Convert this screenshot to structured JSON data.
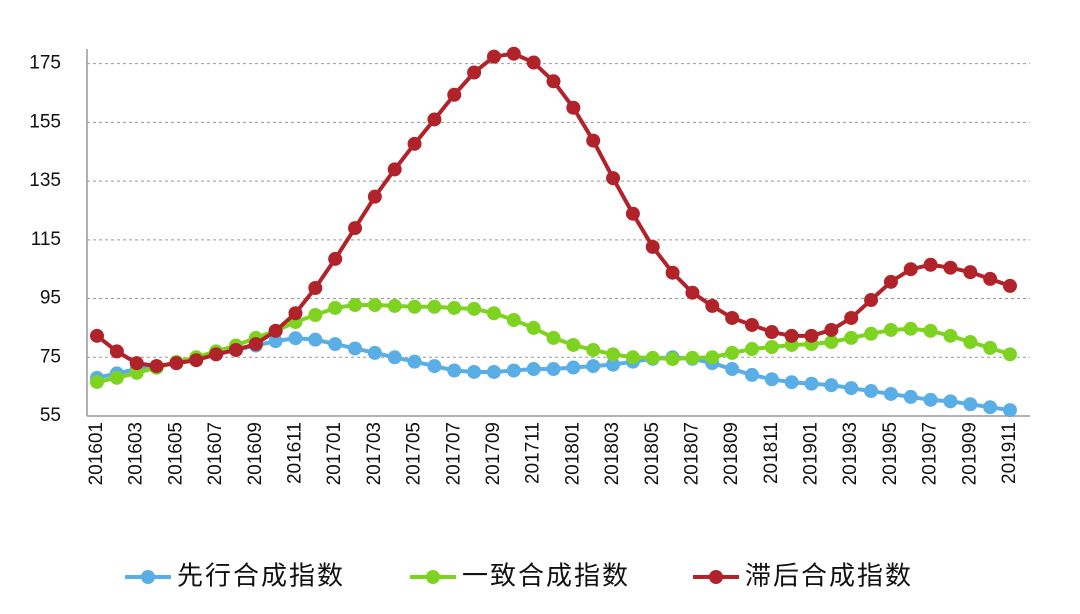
{
  "chart_data": {
    "type": "line",
    "categories": [
      "201601",
      null,
      "201603",
      null,
      "201605",
      null,
      "201607",
      null,
      "201609",
      null,
      "201611",
      null,
      "201701",
      null,
      "201703",
      null,
      "201705",
      null,
      "201707",
      null,
      "201709",
      null,
      "201711",
      null,
      "201801",
      null,
      "201803",
      null,
      "201805",
      null,
      "201807",
      null,
      "201809",
      null,
      "201811",
      null,
      "201901",
      null,
      "201903",
      null,
      "201905",
      null,
      "201907",
      null,
      "201909",
      null,
      "201911"
    ],
    "series": [
      {
        "name": "先行合成指数",
        "color": "#5aaee6",
        "values": [
          68,
          69.5,
          71,
          72,
          73,
          74.5,
          76,
          77.5,
          79,
          80.5,
          81.5,
          81,
          79.5,
          78,
          76.5,
          75,
          73.5,
          72,
          70.5,
          70,
          70,
          70.5,
          71,
          71,
          71.5,
          72,
          72.5,
          73.5,
          74.5,
          75,
          74.5,
          73,
          71,
          69,
          67.5,
          66.5,
          66,
          65.5,
          64.5,
          63.5,
          62.5,
          61.5,
          60.5,
          60,
          59,
          58,
          57
        ]
      },
      {
        "name": "一致合成指数",
        "color": "#7ed321",
        "values": [
          66.6,
          68,
          69.7,
          71.4,
          73.4,
          75,
          77,
          79,
          81.6,
          84,
          87,
          89.4,
          91.8,
          92.8,
          92.8,
          92.5,
          92.2,
          92.2,
          91.8,
          91.5,
          90,
          87.7,
          85,
          81.6,
          79.2,
          77.5,
          76,
          75,
          74.8,
          74.4,
          74.8,
          75,
          76.5,
          77.8,
          78.5,
          79.2,
          79.5,
          80.2,
          81.6,
          83,
          84.3,
          84.7,
          84,
          82.3,
          80.2,
          78.2,
          76
        ]
      },
      {
        "name": "滞后合成指数",
        "color": "#b0232a",
        "values": [
          82.3,
          77,
          73,
          72,
          73,
          74,
          76,
          77.5,
          79.5,
          84,
          90,
          98.6,
          108.5,
          119,
          129.7,
          139,
          147.7,
          156,
          164.4,
          172,
          177.4,
          178.4,
          175.4,
          169,
          160,
          148.8,
          136,
          123.9,
          112.6,
          103.8,
          97,
          92.5,
          88.4,
          86,
          83.6,
          82.3,
          82.3,
          84.3,
          88.4,
          94.5,
          100.7,
          105,
          106.5,
          105.5,
          104,
          101.7,
          99.3
        ]
      }
    ],
    "ylim": [
      55,
      180
    ],
    "yticks": [
      55,
      75,
      95,
      115,
      135,
      155,
      175
    ],
    "grid": true,
    "legend": "bottom"
  }
}
